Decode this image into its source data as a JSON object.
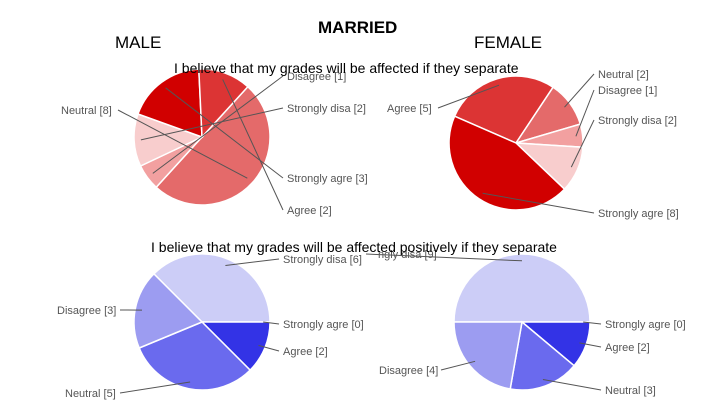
{
  "header": {
    "title": "MARRIED",
    "male": "MALE",
    "female": "FEMALE"
  },
  "questions": [
    "I believe that my grades will be affected if they separate",
    "I believe that my grades will be affected positively if they separate"
  ],
  "chart_data": [
    {
      "type": "pie",
      "title": "",
      "group": "MALE",
      "slices": [
        {
          "name": "Neutral",
          "value": 8,
          "label": "Neutral [8]",
          "color": "#e46a6a"
        },
        {
          "name": "Disagree",
          "value": 1,
          "label": "Disagree [1]",
          "color": "#f2a0a0"
        },
        {
          "name": "Strongly disa",
          "value": 2,
          "label": "Strongly disa [2]",
          "color": "#f8cdcd"
        },
        {
          "name": "Strongly agre",
          "value": 3,
          "label": "Strongly agre [3]",
          "color": "#d10000"
        },
        {
          "name": "Agree",
          "value": 2,
          "label": "Agree [2]",
          "color": "#dc3434"
        }
      ]
    },
    {
      "type": "pie",
      "title": "",
      "group": "FEMALE",
      "slices": [
        {
          "name": "Agree",
          "value": 5,
          "label": "Agree [5]",
          "color": "#dc3434"
        },
        {
          "name": "Neutral",
          "value": 2,
          "label": "Neutral [2]",
          "color": "#e46a6a"
        },
        {
          "name": "Disagree",
          "value": 1,
          "label": "Disagree [1]",
          "color": "#f2a0a0"
        },
        {
          "name": "Strongly disa",
          "value": 2,
          "label": "Strongly disa [2]",
          "color": "#f8cdcd"
        },
        {
          "name": "Strongly agre",
          "value": 8,
          "label": "Strongly agre [8]",
          "color": "#d10000"
        }
      ]
    },
    {
      "type": "pie",
      "title": "",
      "group": "MALE",
      "slices": [
        {
          "name": "Strongly disa",
          "value": 6,
          "label": "Strongly disa [6]",
          "color": "#cccdf7"
        },
        {
          "name": "Strongly agre",
          "value": 0,
          "label": "Strongly agre [0]",
          "color": "#1515cc"
        },
        {
          "name": "Agree",
          "value": 2,
          "label": "Agree [2]",
          "color": "#3333e6"
        },
        {
          "name": "Neutral",
          "value": 5,
          "label": "Neutral [5]",
          "color": "#6a6aee"
        },
        {
          "name": "Disagree",
          "value": 3,
          "label": "Disagree [3]",
          "color": "#9c9cf1"
        }
      ]
    },
    {
      "type": "pie",
      "title": "",
      "group": "FEMALE",
      "slices": [
        {
          "name": "Strongly disa",
          "value": 9,
          "label": "ngly disa [9]",
          "color": "#cccdf7"
        },
        {
          "name": "Strongly agre",
          "value": 0,
          "label": "Strongly agre [0]",
          "color": "#1515cc"
        },
        {
          "name": "Agree",
          "value": 2,
          "label": "Agree [2]",
          "color": "#3333e6"
        },
        {
          "name": "Neutral",
          "value": 3,
          "label": "Neutral [3]",
          "color": "#6a6aee"
        },
        {
          "name": "Disagree",
          "value": 4,
          "label": "Disagree [4]",
          "color": "#9c9cf1"
        }
      ]
    }
  ]
}
